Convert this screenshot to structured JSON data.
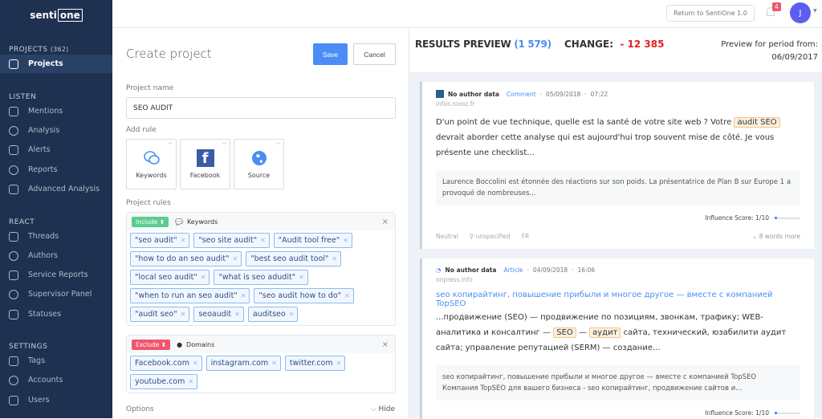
{
  "brand": {
    "logo_text": "sentione",
    "part1": "senti",
    "part2": "one"
  },
  "sidebar": {
    "sections": [
      {
        "label": "PROJECTS",
        "count": "(362)",
        "items": [
          {
            "label": "Projects",
            "icon": "projects-icon",
            "active": true
          }
        ]
      },
      {
        "label": "LISTEN",
        "items": [
          {
            "label": "Mentions",
            "icon": "mentions-icon"
          },
          {
            "label": "Analysis",
            "icon": "analysis-icon"
          },
          {
            "label": "Alerts",
            "icon": "bell-icon"
          },
          {
            "label": "Reports",
            "icon": "reports-icon"
          },
          {
            "label": "Advanced Analysis",
            "icon": "advanced-analysis-icon"
          }
        ]
      },
      {
        "label": "REACT",
        "items": [
          {
            "label": "Threads",
            "icon": "threads-icon"
          },
          {
            "label": "Authors",
            "icon": "authors-icon"
          },
          {
            "label": "Service Reports",
            "icon": "clock-icon"
          },
          {
            "label": "Supervisor Panel",
            "icon": "supervisor-icon"
          },
          {
            "label": "Statuses",
            "icon": "statuses-icon"
          }
        ]
      },
      {
        "label": "SETTINGS",
        "items": [
          {
            "label": "Tags",
            "icon": "tag-icon"
          },
          {
            "label": "Accounts",
            "icon": "accounts-icon"
          },
          {
            "label": "Users",
            "icon": "user-icon"
          }
        ]
      }
    ]
  },
  "topbar": {
    "return_label": "Return to SentiOne 1.0",
    "notifications": "4",
    "avatar_initial": "J"
  },
  "form": {
    "title": "Create project",
    "save": "Save",
    "cancel": "Cancel",
    "name_label": "Project name",
    "name_value": "SEO AUDIT",
    "add_rule_label": "Add rule",
    "rule_types": [
      {
        "label": "Keywords",
        "icon": "keywords-icon"
      },
      {
        "label": "Facebook",
        "icon": "facebook-icon"
      },
      {
        "label": "Source",
        "icon": "globe-icon"
      }
    ],
    "rules_label": "Project rules",
    "rules": [
      {
        "mode": "Include",
        "mode_color": "#5ccb8f",
        "type": "Keywords",
        "tags": [
          "\"seo audit\"",
          "\"seo site audit\"",
          "\"Audit tool free\"",
          "\"how to do an seo audit\"",
          "\"best seo audit tool\"",
          "\"local seo audit\"",
          "\"what is seo adudit\"",
          "\"when to run an seo audit\"",
          "\"seo audit how to do\"",
          "\"audit seo\"",
          "seoaudit",
          "auditseo"
        ]
      },
      {
        "mode": "Exclude",
        "mode_color": "#f0566e",
        "type": "Domains",
        "tags": [
          "Facebook.com",
          "instagram.com",
          "twitter.com",
          "youtube.com"
        ]
      }
    ],
    "options_label": "Options",
    "hide_label": "Hide"
  },
  "preview": {
    "title": "RESULTS PREVIEW",
    "count": "(1 579)",
    "change_label": "CHANGE:",
    "change_value": "- 12 385",
    "period_label": "Preview for period from:",
    "period_date": "06/09/2017",
    "results": [
      {
        "author": "No author data",
        "type": "Comment",
        "date": "05/09/2018",
        "time": "07:22",
        "source": "infos.niooz.fr",
        "text_parts": [
          "D'un point de vue technique, quelle est la santé de votre site web ? Votre ",
          "audit SEO",
          " devrait aborder cette analyse qui est aujourd'hui trop souvent mise de côté. Je vous présente une checklist..."
        ],
        "quote": "Laurence Boccolini est étonnée des réactions sur son poids. La présentatrice de Plan B sur Europe 1 a provoqué de nombreuses...",
        "influence": "Influence Score: 1/10",
        "influence_value": 0.1,
        "sentiment": "Neutral",
        "gender": "unspecified",
        "lang": "FR",
        "more": "8 words more"
      },
      {
        "author": "No author data",
        "type": "Article",
        "date": "04/09/2018",
        "time": "16:06",
        "source": "onpress.info",
        "headline": "seo копирайтинг, повышение прибыли и многое другое — вместе с компанией TopSEO",
        "text_parts": [
          "...продвижение (SEO) — продвижение по позициям, звонкам, трафику; WEB- аналитика и консалтинг — ",
          "SEO",
          " — ",
          "аудит",
          " сайта, технический, юзабилити аудит сайта; управление репутацией (SERM) — создание..."
        ],
        "quote": "seo копирайтинг, повышение прибыли и многое другое — вместе с компанией TopSEO Компания TopSEO для вашего бизнеса - seo копирайтинг, продвижение сайтов и...",
        "influence": "Influence Score: 1/10",
        "influence_value": 0.1
      }
    ]
  }
}
